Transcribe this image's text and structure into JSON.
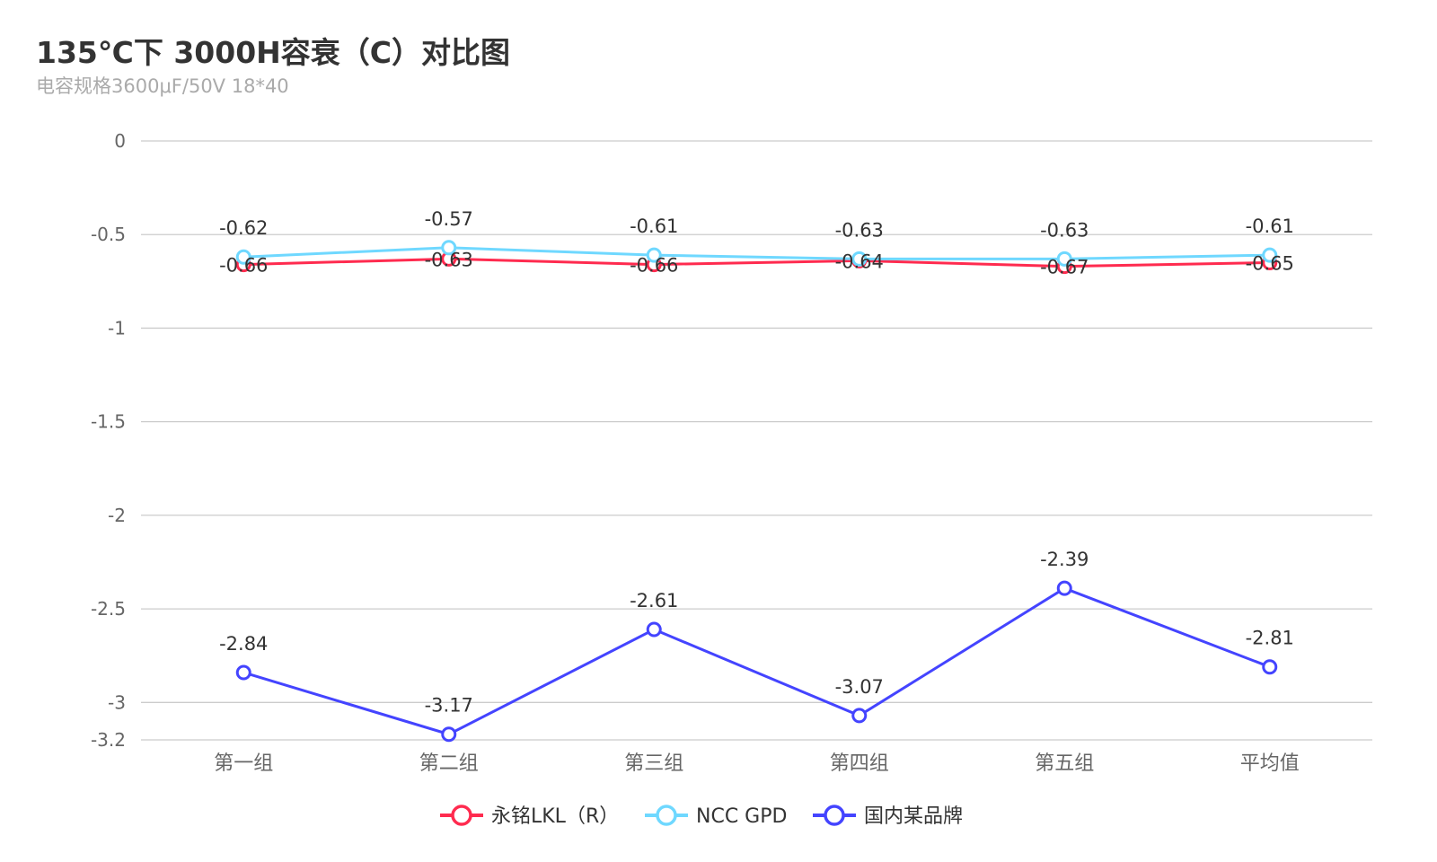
{
  "chart_data": {
    "type": "line",
    "title": "135℃下 3000H容衰（C）对比图",
    "subtitle": "电容规格3600μF/50V 18*40",
    "categories": [
      "第一组",
      "第二组",
      "第三组",
      "第四组",
      "第五组",
      "平均值"
    ],
    "yticks": [
      "0",
      "-0.5",
      "-1",
      "-1.5",
      "-2",
      "-2.5",
      "-3",
      "-3.2"
    ],
    "ytick_values": [
      0,
      -0.5,
      -1,
      -1.5,
      -2,
      -2.5,
      -3,
      -3.2
    ],
    "ylim": [
      -3.2,
      0
    ],
    "grid": true,
    "legend_position": "bottom",
    "series": [
      {
        "name": "永铭LKL（R）",
        "color": "#ff2b4f",
        "values": [
          -0.66,
          -0.63,
          -0.66,
          -0.64,
          -0.67,
          -0.65
        ],
        "label_pos": "center"
      },
      {
        "name": "NCC GPD",
        "color": "#6fd8ff",
        "values": [
          -0.62,
          -0.57,
          -0.61,
          -0.63,
          -0.63,
          -0.61
        ],
        "label_pos": "above"
      },
      {
        "name": "国内某品牌",
        "color": "#4444ff",
        "values": [
          -2.84,
          -3.17,
          -2.61,
          -3.07,
          -2.39,
          -2.81
        ],
        "label_pos": "above"
      }
    ]
  }
}
